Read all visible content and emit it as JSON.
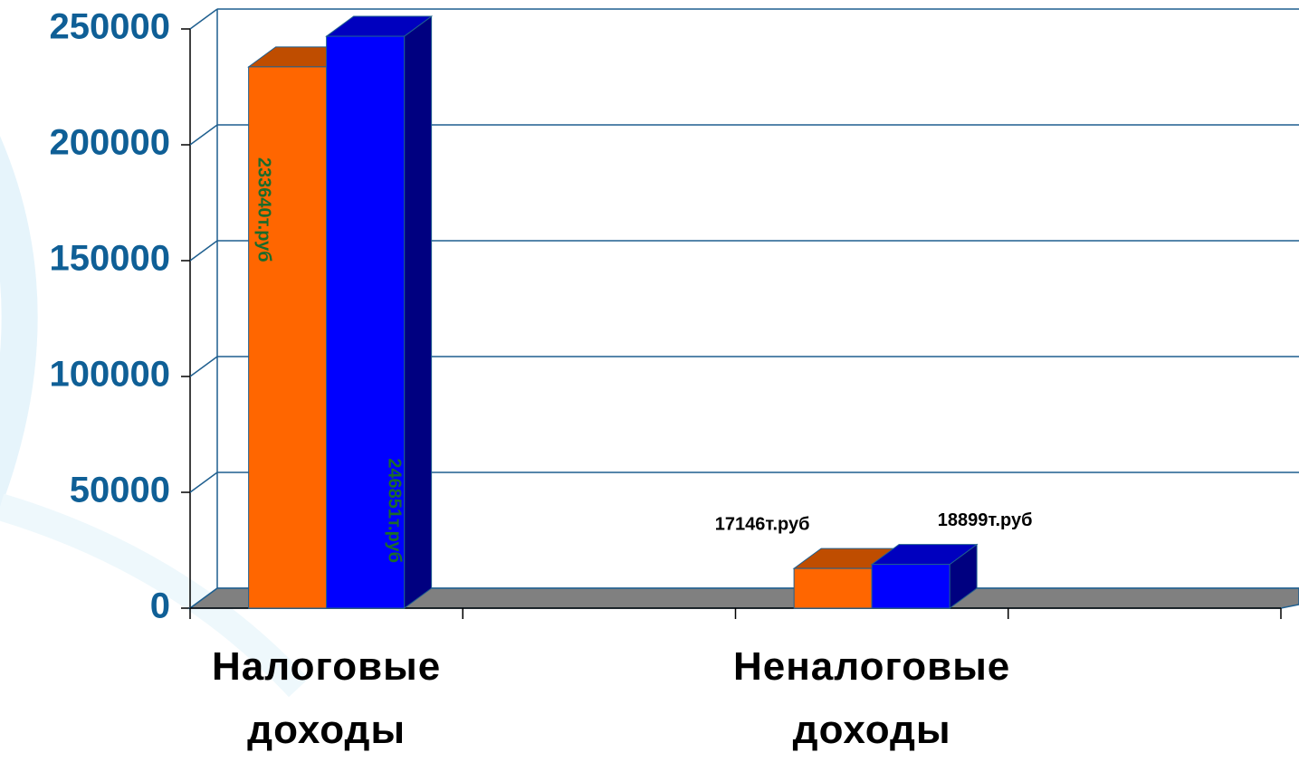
{
  "chart_data": {
    "type": "bar",
    "categories": [
      "Налоговые доходы",
      null,
      "Неналоговые доходы",
      null
    ],
    "series": [
      {
        "color": "#ff6600",
        "values": [
          233640,
          null,
          17146,
          null
        ],
        "value_labels": [
          "233640т.руб",
          null,
          "17146т.руб",
          null
        ]
      },
      {
        "color": "#0000ff",
        "values": [
          246851,
          null,
          18899,
          null
        ],
        "value_labels": [
          "246851т.руб",
          null,
          "18899т.руб",
          null
        ]
      }
    ],
    "ylim": [
      0,
      250000
    ],
    "yticks": [
      0,
      50000,
      100000,
      150000,
      200000,
      250000
    ],
    "grid": true
  }
}
